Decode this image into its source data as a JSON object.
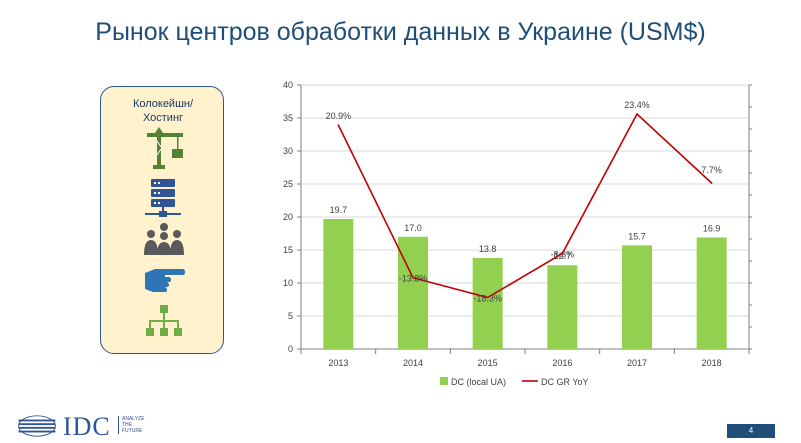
{
  "page": {
    "title": "Рынок центров обработки данных в Украине (USM$)",
    "page_number": "4"
  },
  "side_panel": {
    "label": "Колокейшн/Хостинг",
    "icons": [
      "crane-icon",
      "server-rack-icon",
      "audience-icon",
      "pointing-hand-icon",
      "hierarchy-icon"
    ]
  },
  "footer": {
    "logo_text": "IDC",
    "tagline": "ANALYZE THE FUTURE"
  },
  "colors": {
    "bar": "#92d050",
    "line": "#c00000",
    "title": "#1f4e79",
    "icon": "#2f5597"
  },
  "chart_data": {
    "type": "bar",
    "categories": [
      "2013",
      "2014",
      "2015",
      "2016",
      "2017",
      "2018"
    ],
    "series": [
      {
        "name": "DC (local UA)",
        "type": "bar",
        "values": [
          19.7,
          17.0,
          13.8,
          12.7,
          15.7,
          16.9
        ],
        "labels": [
          "19.7",
          "17.0",
          "13.8",
          "12.7",
          "15.7",
          "16.9"
        ]
      },
      {
        "name": "DC GR YoY",
        "type": "line",
        "axis": "secondary",
        "values": [
          20.9,
          -13.8,
          -18.3,
          -8.3,
          23.4,
          7.7
        ],
        "labels": [
          "20.9%",
          "-13.8%",
          "-18.3%",
          "-8.3%",
          "23.4%",
          "7.7%"
        ]
      }
    ],
    "yticks": [
      "0",
      "5",
      "10",
      "15",
      "20",
      "25",
      "30",
      "35",
      "40"
    ],
    "ylim": [
      0,
      40
    ],
    "y2lim": [
      -30,
      30
    ],
    "legend": "bottom",
    "grid": true
  }
}
